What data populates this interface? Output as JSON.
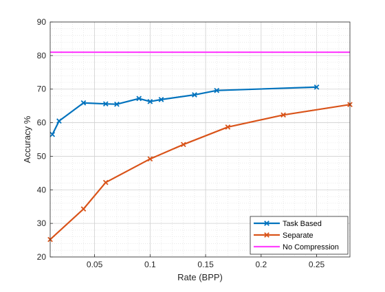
{
  "chart_data": {
    "type": "line",
    "title": "",
    "xlabel": "Rate (BPP)",
    "ylabel": "Accuracy %",
    "xlim": [
      0.01,
      0.28
    ],
    "ylim": [
      20,
      90
    ],
    "xticks": [
      0.05,
      0.1,
      0.15,
      0.2,
      0.25
    ],
    "xtick_labels": [
      "0.05",
      "0.1",
      "0.15",
      "0.2",
      "0.25"
    ],
    "yticks": [
      20,
      30,
      40,
      50,
      60,
      70,
      80,
      90
    ],
    "ytick_labels": [
      "20",
      "30",
      "40",
      "50",
      "60",
      "70",
      "80",
      "90"
    ],
    "grid": true,
    "minor_grid": true,
    "legend_position": "bottom-right",
    "series": [
      {
        "name": "Task Based",
        "color": "#0072BD",
        "marker": "x",
        "x": [
          0.012,
          0.018,
          0.04,
          0.06,
          0.07,
          0.09,
          0.1,
          0.11,
          0.14,
          0.16,
          0.25
        ],
        "y": [
          56.5,
          60.5,
          65.9,
          65.6,
          65.5,
          67.2,
          66.3,
          66.9,
          68.3,
          69.6,
          70.6
        ]
      },
      {
        "name": "Separate",
        "color": "#D95319",
        "marker": "x",
        "x": [
          0.01,
          0.04,
          0.06,
          0.1,
          0.13,
          0.17,
          0.22,
          0.28
        ],
        "y": [
          25.2,
          34.3,
          42.2,
          49.2,
          53.5,
          58.7,
          62.3,
          65.4
        ]
      },
      {
        "name": "No Compression",
        "color": "#FF40FF",
        "marker": "none",
        "x": [
          0.01,
          0.28
        ],
        "y": [
          81,
          81
        ]
      }
    ]
  }
}
